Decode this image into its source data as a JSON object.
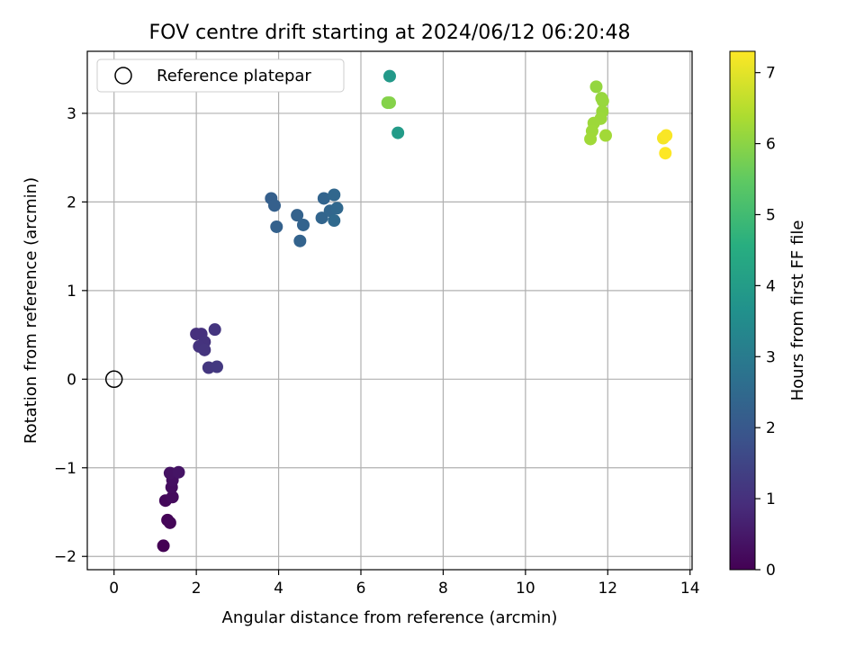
{
  "chart_data": {
    "type": "scatter",
    "title": "FOV centre drift starting at 2024/06/12 06:20:48",
    "xlabel": "Angular distance from reference (arcmin)",
    "ylabel": "Rotation from reference (arcmin)",
    "xlim": [
      -0.65,
      14.05
    ],
    "ylim": [
      -2.15,
      3.7
    ],
    "xticks": [
      0,
      2,
      4,
      6,
      8,
      10,
      12,
      14
    ],
    "yticks": [
      -2,
      -1,
      0,
      1,
      2,
      3
    ],
    "grid": true,
    "legend": {
      "location": "upper-left",
      "entries": [
        "Reference platepar"
      ]
    },
    "reference_point": {
      "x": 0,
      "y": 0,
      "label": "Reference platepar"
    },
    "colorbar": {
      "label": "Hours from first FF file",
      "min": 0,
      "max": 7.3,
      "ticks": [
        0,
        1,
        2,
        3,
        4,
        5,
        6,
        7
      ],
      "colormap": "viridis"
    },
    "points": [
      {
        "x": 1.2,
        "y": -1.88,
        "c": 0.0
      },
      {
        "x": 1.3,
        "y": -1.59,
        "c": 0.05
      },
      {
        "x": 1.36,
        "y": -1.62,
        "c": 0.1
      },
      {
        "x": 1.25,
        "y": -1.37,
        "c": 0.15
      },
      {
        "x": 1.42,
        "y": -1.33,
        "c": 0.2
      },
      {
        "x": 1.4,
        "y": -1.22,
        "c": 0.25
      },
      {
        "x": 1.42,
        "y": -1.14,
        "c": 0.3
      },
      {
        "x": 1.36,
        "y": -1.06,
        "c": 0.35
      },
      {
        "x": 1.57,
        "y": -1.05,
        "c": 0.4
      },
      {
        "x": 2.0,
        "y": 0.51,
        "c": 1.0
      },
      {
        "x": 2.12,
        "y": 0.51,
        "c": 1.02
      },
      {
        "x": 2.2,
        "y": 0.42,
        "c": 1.05
      },
      {
        "x": 2.07,
        "y": 0.37,
        "c": 1.07
      },
      {
        "x": 2.2,
        "y": 0.33,
        "c": 1.1
      },
      {
        "x": 2.45,
        "y": 0.56,
        "c": 1.12
      },
      {
        "x": 2.3,
        "y": 0.13,
        "c": 1.15
      },
      {
        "x": 2.5,
        "y": 0.14,
        "c": 1.18
      },
      {
        "x": 3.82,
        "y": 2.04,
        "c": 2.2
      },
      {
        "x": 3.9,
        "y": 1.96,
        "c": 2.22
      },
      {
        "x": 3.95,
        "y": 1.72,
        "c": 2.25
      },
      {
        "x": 4.45,
        "y": 1.85,
        "c": 2.27
      },
      {
        "x": 4.6,
        "y": 1.74,
        "c": 2.3
      },
      {
        "x": 4.52,
        "y": 1.56,
        "c": 2.32
      },
      {
        "x": 5.1,
        "y": 2.04,
        "c": 2.35
      },
      {
        "x": 5.05,
        "y": 1.82,
        "c": 2.37
      },
      {
        "x": 5.25,
        "y": 1.9,
        "c": 2.4
      },
      {
        "x": 5.35,
        "y": 2.08,
        "c": 2.42
      },
      {
        "x": 5.42,
        "y": 1.93,
        "c": 2.45
      },
      {
        "x": 5.35,
        "y": 1.79,
        "c": 2.47
      },
      {
        "x": 6.7,
        "y": 3.42,
        "c": 3.9
      },
      {
        "x": 6.9,
        "y": 2.78,
        "c": 3.95
      },
      {
        "x": 6.65,
        "y": 3.12,
        "c": 5.9
      },
      {
        "x": 6.7,
        "y": 3.12,
        "c": 5.92
      },
      {
        "x": 11.72,
        "y": 3.3,
        "c": 6.1
      },
      {
        "x": 11.85,
        "y": 3.17,
        "c": 6.12
      },
      {
        "x": 11.88,
        "y": 3.14,
        "c": 6.14
      },
      {
        "x": 11.87,
        "y": 3.02,
        "c": 6.16
      },
      {
        "x": 11.83,
        "y": 2.94,
        "c": 6.18
      },
      {
        "x": 11.66,
        "y": 2.89,
        "c": 6.2
      },
      {
        "x": 11.62,
        "y": 2.8,
        "c": 6.22
      },
      {
        "x": 11.58,
        "y": 2.71,
        "c": 6.24
      },
      {
        "x": 11.95,
        "y": 2.75,
        "c": 6.26
      },
      {
        "x": 13.35,
        "y": 2.72,
        "c": 7.2
      },
      {
        "x": 13.42,
        "y": 2.75,
        "c": 7.25
      },
      {
        "x": 13.4,
        "y": 2.55,
        "c": 7.3
      }
    ]
  }
}
